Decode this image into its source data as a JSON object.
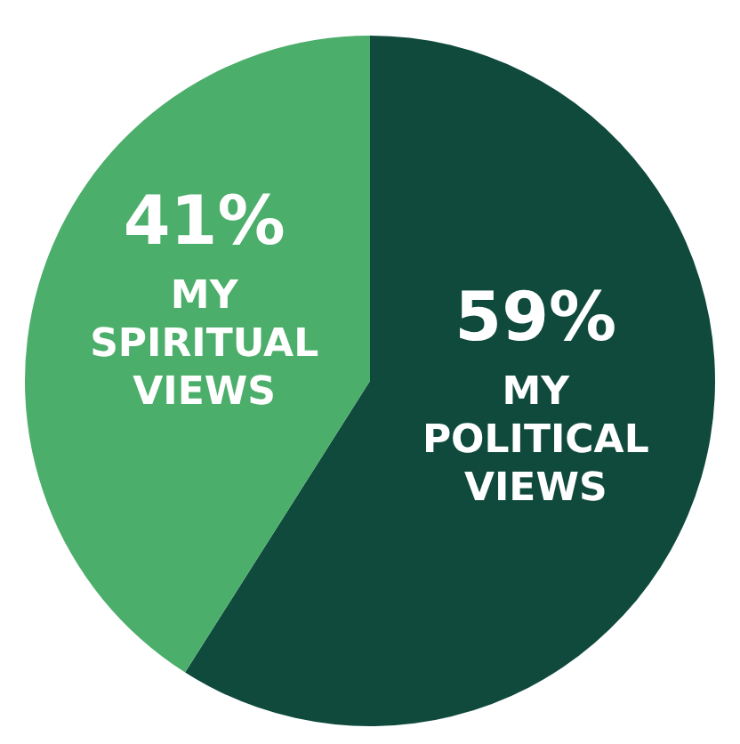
{
  "chart_data": {
    "type": "pie",
    "categories": [
      "MY POLITICAL VIEWS",
      "MY SPIRITUAL VIEWS"
    ],
    "values": [
      59,
      41
    ],
    "colors": [
      "#0f4a3d",
      "#4cae6b"
    ],
    "value_labels": [
      "59%",
      "41%"
    ]
  }
}
